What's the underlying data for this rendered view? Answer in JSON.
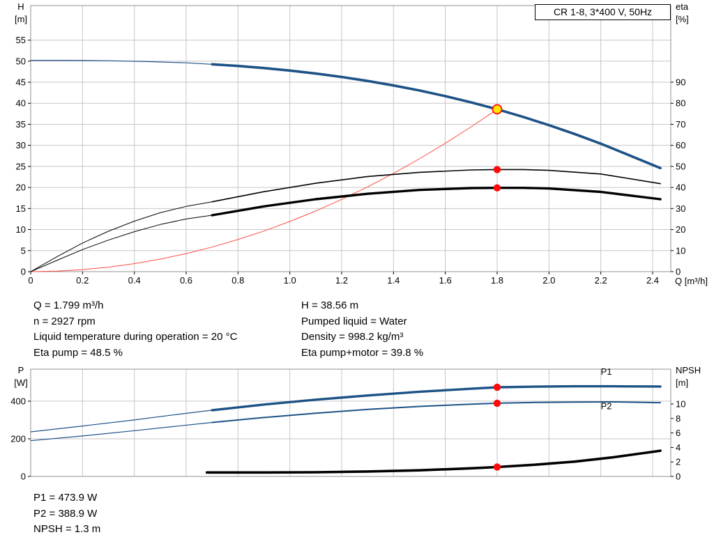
{
  "panel_title": "CR 1-8, 3*400 V, 50Hz",
  "info_top": {
    "left": [
      "Q = 1.799 m³/h",
      "n = 2927 rpm",
      "Liquid temperature during operation = 20 °C",
      "Eta pump = 48.5 %"
    ],
    "right": [
      "H = 38.56 m",
      "Pumped liquid = Water",
      "Density = 998.2 kg/m³",
      "Eta pump+motor = 39.8 %"
    ]
  },
  "info_bottom": {
    "lines": [
      "P1 = 473.9 W",
      "P2 = 388.9 W",
      "NPSH = 1.3 m"
    ]
  },
  "colors": {
    "blue": "#1d5286",
    "black": "#000000",
    "curve_red": "#ff4a42",
    "dot_red": "#ff0a0a",
    "yellow": "#ffe600",
    "grid": "#c6c6c6",
    "frame": "#909090"
  },
  "chart_data": [
    {
      "type": "line",
      "name": "qh-eta-chart",
      "title": "CR 1-8, 3*400 V, 50Hz",
      "x": {
        "label": "Q [m³/h]",
        "lim": [
          0,
          2.47
        ],
        "ticks": [
          0,
          0.2,
          0.4,
          0.6,
          0.8,
          1.0,
          1.2,
          1.4,
          1.6,
          1.8,
          2.0,
          2.2,
          2.4
        ],
        "tick_labels": [
          "0",
          "0.2",
          "0.4",
          "0.6",
          "0.8",
          "1.0",
          "1.2",
          "1.4",
          "1.6",
          "1.8",
          "2.0",
          "2.2",
          "2.4"
        ],
        "show_labels": true
      },
      "y_left": {
        "label": "H",
        "unit": "[m]",
        "lim": [
          0,
          63.2
        ],
        "ticks": [
          0,
          5,
          10,
          15,
          20,
          25,
          30,
          35,
          40,
          45,
          50,
          55
        ]
      },
      "y_right": {
        "label": "eta",
        "unit": "[%]",
        "lim": [
          0,
          126.4
        ],
        "ticks": [
          0,
          10,
          20,
          30,
          40,
          50,
          60,
          70,
          80,
          90
        ]
      },
      "series": [
        {
          "name": "head-curve-inlet",
          "axis": "left",
          "color": "blue",
          "width": 1.2,
          "points": [
            [
              0,
              50.2
            ],
            [
              0.15,
              50.2
            ],
            [
              0.3,
              50.1
            ],
            [
              0.45,
              49.9
            ],
            [
              0.6,
              49.6
            ],
            [
              0.7,
              49.25
            ]
          ]
        },
        {
          "name": "head-curve",
          "axis": "left",
          "color": "blue",
          "width": 3.6,
          "points": [
            [
              0.7,
              49.25
            ],
            [
              0.8,
              48.85
            ],
            [
              0.9,
              48.36
            ],
            [
              1.0,
              47.76
            ],
            [
              1.1,
              47.06
            ],
            [
              1.2,
              46.24
            ],
            [
              1.3,
              45.3
            ],
            [
              1.4,
              44.23
            ],
            [
              1.5,
              43.03
            ],
            [
              1.6,
              41.69
            ],
            [
              1.7,
              40.21
            ],
            [
              1.8,
              38.56
            ],
            [
              1.9,
              36.77
            ],
            [
              2.0,
              34.8
            ],
            [
              2.1,
              32.68
            ],
            [
              2.2,
              30.4
            ],
            [
              2.3,
              27.9
            ],
            [
              2.43,
              24.6
            ]
          ]
        },
        {
          "name": "system-curve",
          "axis": "left",
          "color": "curve_red",
          "width": 1,
          "points": [
            [
              0,
              0
            ],
            [
              0.1,
              0.12
            ],
            [
              0.2,
              0.48
            ],
            [
              0.3,
              1.07
            ],
            [
              0.4,
              1.91
            ],
            [
              0.5,
              2.98
            ],
            [
              0.6,
              4.29
            ],
            [
              0.7,
              5.84
            ],
            [
              0.8,
              7.62
            ],
            [
              0.9,
              9.65
            ],
            [
              1.0,
              11.91
            ],
            [
              1.1,
              14.41
            ],
            [
              1.2,
              17.15
            ],
            [
              1.3,
              20.13
            ],
            [
              1.4,
              23.34
            ],
            [
              1.5,
              26.8
            ],
            [
              1.6,
              30.49
            ],
            [
              1.7,
              34.42
            ],
            [
              1.8,
              38.56
            ]
          ]
        },
        {
          "name": "eta-pump-curve-inlet",
          "axis": "right",
          "color": "black",
          "width": 1,
          "points": [
            [
              0,
              0
            ],
            [
              0.1,
              7
            ],
            [
              0.2,
              13.6
            ],
            [
              0.3,
              19.2
            ],
            [
              0.4,
              24
            ],
            [
              0.5,
              28
            ],
            [
              0.6,
              31
            ],
            [
              0.7,
              33.2
            ]
          ]
        },
        {
          "name": "eta-pump-curve",
          "axis": "right",
          "color": "black",
          "width": 1.6,
          "points": [
            [
              0.7,
              33.2
            ],
            [
              0.9,
              38
            ],
            [
              1.1,
              42
            ],
            [
              1.3,
              45.2
            ],
            [
              1.5,
              47.2
            ],
            [
              1.7,
              48.3
            ],
            [
              1.8,
              48.5
            ],
            [
              1.9,
              48.5
            ],
            [
              2.0,
              48.1
            ],
            [
              2.2,
              46.4
            ],
            [
              2.43,
              41.8
            ]
          ]
        },
        {
          "name": "eta-pump-motor-curve-inlet",
          "axis": "right",
          "color": "black",
          "width": 1,
          "points": [
            [
              0,
              0
            ],
            [
              0.1,
              5.3
            ],
            [
              0.2,
              10.5
            ],
            [
              0.3,
              15
            ],
            [
              0.4,
              19
            ],
            [
              0.5,
              22.4
            ],
            [
              0.6,
              25
            ],
            [
              0.7,
              26.8
            ]
          ]
        },
        {
          "name": "eta-pump-motor-curve",
          "axis": "right",
          "color": "black",
          "width": 3.4,
          "points": [
            [
              0.7,
              26.8
            ],
            [
              0.9,
              31
            ],
            [
              1.1,
              34.4
            ],
            [
              1.3,
              37
            ],
            [
              1.5,
              38.8
            ],
            [
              1.7,
              39.7
            ],
            [
              1.8,
              39.8
            ],
            [
              1.9,
              39.8
            ],
            [
              2.0,
              39.5
            ],
            [
              2.2,
              37.9
            ],
            [
              2.43,
              34.4
            ]
          ]
        }
      ],
      "markers": [
        {
          "name": "duty-point",
          "x": 1.8,
          "y": 38.56,
          "axis": "left",
          "fill": "yellow",
          "stroke": "dot_red",
          "r": 6.5,
          "interactable": true
        },
        {
          "name": "eta-pump-point",
          "x": 1.8,
          "y": 48.5,
          "axis": "right",
          "fill": "dot_red",
          "r": 5.2
        },
        {
          "name": "eta-pump-motor-point",
          "x": 1.8,
          "y": 39.8,
          "axis": "right",
          "fill": "dot_red",
          "r": 5.2
        }
      ],
      "labels": []
    },
    {
      "type": "line",
      "name": "power-npsh-chart",
      "x": {
        "label": "",
        "lim": [
          0,
          2.47
        ],
        "ticks": [
          0,
          0.2,
          0.4,
          0.6,
          0.8,
          1.0,
          1.2,
          1.4,
          1.6,
          1.8,
          2.0,
          2.2,
          2.4
        ],
        "tick_labels": [],
        "show_labels": false
      },
      "y_left": {
        "label": "P",
        "unit": "[W]",
        "lim": [
          0,
          570
        ],
        "ticks": [
          0,
          200,
          400
        ]
      },
      "y_right": {
        "label": "NPSH",
        "unit": "[m]",
        "lim": [
          0,
          14.8
        ],
        "ticks": [
          0,
          2,
          4,
          6,
          8,
          10
        ]
      },
      "series": [
        {
          "name": "p1-curve-inlet",
          "axis": "left",
          "color": "blue",
          "width": 1.2,
          "points": [
            [
              0,
              237
            ],
            [
              0.2,
              268
            ],
            [
              0.4,
              300
            ],
            [
              0.55,
              327
            ],
            [
              0.7,
              352
            ]
          ]
        },
        {
          "name": "p1-curve",
          "axis": "left",
          "color": "blue",
          "width": 3.4,
          "points": [
            [
              0.7,
              352
            ],
            [
              0.9,
              382
            ],
            [
              1.1,
              408
            ],
            [
              1.3,
              430
            ],
            [
              1.5,
              450
            ],
            [
              1.7,
              466
            ],
            [
              1.8,
              473.9
            ],
            [
              1.95,
              477
            ],
            [
              2.1,
              479
            ],
            [
              2.25,
              479
            ],
            [
              2.43,
              478
            ]
          ]
        },
        {
          "name": "p2-curve-inlet",
          "axis": "left",
          "color": "blue",
          "width": 1.2,
          "points": [
            [
              0,
              190
            ],
            [
              0.2,
              215
            ],
            [
              0.4,
              243
            ],
            [
              0.55,
              265
            ],
            [
              0.7,
              287
            ]
          ]
        },
        {
          "name": "p2-curve",
          "axis": "left",
          "color": "blue",
          "width": 2,
          "points": [
            [
              0.7,
              287
            ],
            [
              0.9,
              313
            ],
            [
              1.1,
              336
            ],
            [
              1.3,
              356
            ],
            [
              1.5,
              372
            ],
            [
              1.7,
              384
            ],
            [
              1.8,
              388.9
            ],
            [
              1.95,
              393
            ],
            [
              2.1,
              395
            ],
            [
              2.25,
              396
            ],
            [
              2.43,
              392
            ]
          ]
        },
        {
          "name": "npsh-curve",
          "axis": "right",
          "color": "black",
          "width": 3.6,
          "points": [
            [
              0.68,
              0.55
            ],
            [
              0.9,
              0.55
            ],
            [
              1.1,
              0.58
            ],
            [
              1.3,
              0.68
            ],
            [
              1.5,
              0.85
            ],
            [
              1.7,
              1.12
            ],
            [
              1.8,
              1.3
            ],
            [
              1.95,
              1.62
            ],
            [
              2.1,
              2.05
            ],
            [
              2.25,
              2.65
            ],
            [
              2.43,
              3.55
            ]
          ]
        }
      ],
      "markers": [
        {
          "name": "p1-point",
          "x": 1.8,
          "y": 473.9,
          "axis": "left",
          "fill": "dot_red",
          "r": 5.2
        },
        {
          "name": "p2-point",
          "x": 1.8,
          "y": 388.9,
          "axis": "left",
          "fill": "dot_red",
          "r": 5.2
        },
        {
          "name": "npsh-point",
          "x": 1.8,
          "y": 1.3,
          "axis": "right",
          "fill": "dot_red",
          "r": 5.2
        }
      ],
      "labels": [
        {
          "text": "P1",
          "x": 2.2,
          "y": 540,
          "axis": "left",
          "color": "blue"
        },
        {
          "text": "P2",
          "x": 2.2,
          "y": 358,
          "axis": "left",
          "color": "blue"
        }
      ]
    }
  ]
}
